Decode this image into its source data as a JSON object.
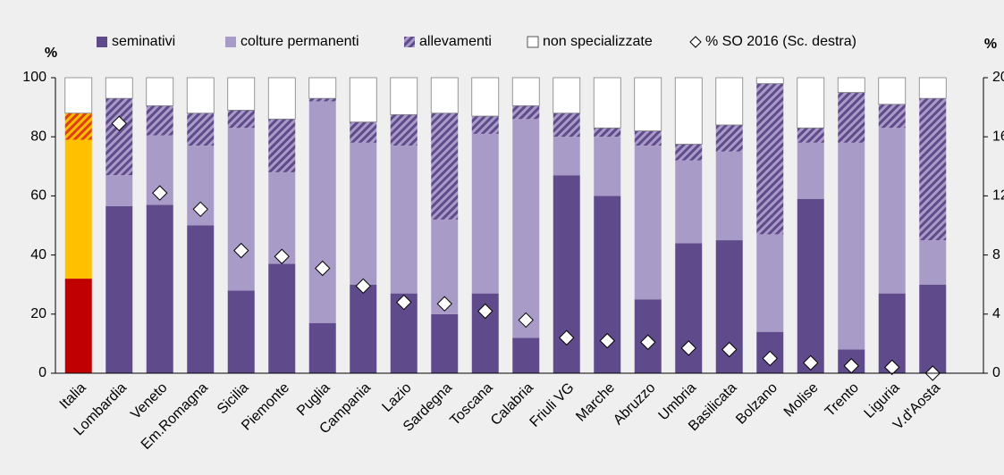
{
  "chart_data": {
    "type": "stacked-bar",
    "y_label": "%",
    "y2_label": "%",
    "categories": [
      "Italia",
      "Lombardia",
      "Veneto",
      "Em.Romagna",
      "Sicilia",
      "Piemonte",
      "Puglia",
      "Campania",
      "Lazio",
      "Sardegna",
      "Toscana",
      "Calabria",
      "Friuli VG",
      "Marche",
      "Abruzzo",
      "Umbria",
      "Basilicata",
      "Bolzano",
      "Molise",
      "Trento",
      "Liguria",
      "V.d'Aosta"
    ],
    "highlight_index": 0,
    "series": [
      {
        "name": "seminativi",
        "color": "#5f4b8b",
        "highlight_color": "#c00000",
        "values": [
          32,
          56.5,
          57,
          50,
          28,
          37,
          17,
          30,
          27,
          20,
          27,
          12,
          67,
          60,
          25,
          44,
          45,
          14,
          59,
          8,
          27,
          30
        ]
      },
      {
        "name": "colture permanenti",
        "color": "#a99bc7",
        "highlight_color": "#ffc000",
        "values": [
          47,
          10.5,
          23.5,
          27,
          55,
          31,
          75,
          48,
          50,
          32,
          54,
          74,
          13,
          20,
          52,
          28,
          30,
          33,
          19,
          70,
          56,
          15
        ]
      },
      {
        "name": "allevamenti",
        "color": "#7b68a6",
        "pattern": "hatch",
        "highlight_color": "#e04010",
        "values": [
          9,
          26,
          10,
          11,
          6,
          18,
          1,
          7,
          10.5,
          36,
          6,
          4.5,
          8,
          3,
          5,
          5.5,
          9,
          51,
          5,
          17,
          8,
          48
        ]
      },
      {
        "name": "non specializzate",
        "color": "#ffffff",
        "highlight_color": "#ffffff",
        "values": [
          12,
          7,
          9.5,
          12,
          11,
          14,
          7,
          15,
          12.5,
          12,
          13,
          9.5,
          12,
          17,
          18,
          22.5,
          16,
          2,
          17,
          5,
          9,
          7
        ]
      },
      {
        "name": "% SO 2016 (Sc. destra)",
        "type": "marker",
        "axis": "y2",
        "color": "#ffffff",
        "values": [
          null,
          16.9,
          12.2,
          11.1,
          8.3,
          7.9,
          7.1,
          5.9,
          4.8,
          4.7,
          4.2,
          3.6,
          2.4,
          2.2,
          2.1,
          1.7,
          1.6,
          1.0,
          0.7,
          0.5,
          0.4,
          0
        ]
      }
    ],
    "ylim": [
      0,
      100
    ],
    "yticks": [
      0,
      20,
      40,
      60,
      80,
      100
    ],
    "y2lim": [
      0,
      20
    ],
    "y2ticks": [
      0,
      4,
      8,
      12,
      16,
      20
    ]
  }
}
